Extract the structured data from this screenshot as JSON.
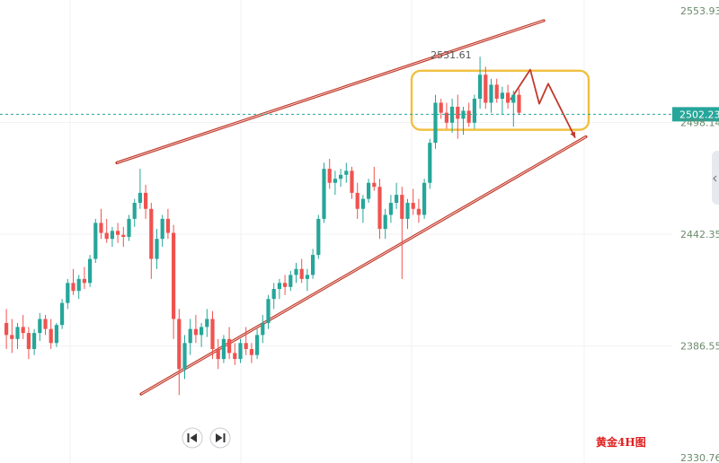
{
  "chart_data": {
    "type": "candlestick",
    "title": "黄金4H图",
    "y_ticks": [
      "2553.93",
      "2498.14",
      "2442.35",
      "2386.55",
      "2330.76"
    ],
    "ylim": [
      2330.76,
      2553.93
    ],
    "current_price": "2502.23",
    "annotations": {
      "high_label": "2531.61"
    },
    "grid": true,
    "candles": [
      [
        2398,
        2405,
        2385,
        2392
      ],
      [
        2392,
        2400,
        2383,
        2390
      ],
      [
        2390,
        2398,
        2385,
        2396
      ],
      [
        2396,
        2402,
        2390,
        2393
      ],
      [
        2393,
        2396,
        2380,
        2385
      ],
      [
        2385,
        2395,
        2382,
        2393
      ],
      [
        2393,
        2403,
        2389,
        2400
      ],
      [
        2400,
        2402,
        2392,
        2395
      ],
      [
        2395,
        2400,
        2385,
        2388
      ],
      [
        2388,
        2398,
        2386,
        2397
      ],
      [
        2397,
        2410,
        2395,
        2408
      ],
      [
        2408,
        2420,
        2405,
        2418
      ],
      [
        2418,
        2425,
        2412,
        2414
      ],
      [
        2414,
        2422,
        2410,
        2420
      ],
      [
        2420,
        2426,
        2415,
        2418
      ],
      [
        2418,
        2432,
        2416,
        2430
      ],
      [
        2430,
        2450,
        2428,
        2448
      ],
      [
        2448,
        2455,
        2440,
        2443
      ],
      [
        2443,
        2450,
        2438,
        2440
      ],
      [
        2440,
        2446,
        2436,
        2444
      ],
      [
        2444,
        2448,
        2438,
        2442
      ],
      [
        2442,
        2446,
        2436,
        2441
      ],
      [
        2441,
        2452,
        2439,
        2450
      ],
      [
        2450,
        2460,
        2446,
        2458
      ],
      [
        2458,
        2475,
        2455,
        2463
      ],
      [
        2463,
        2467,
        2450,
        2455
      ],
      [
        2455,
        2458,
        2420,
        2430
      ],
      [
        2430,
        2445,
        2425,
        2440
      ],
      [
        2440,
        2452,
        2436,
        2450
      ],
      [
        2450,
        2455,
        2440,
        2443
      ],
      [
        2443,
        2447,
        2390,
        2400
      ],
      [
        2400,
        2405,
        2362,
        2375
      ],
      [
        2375,
        2392,
        2370,
        2388
      ],
      [
        2388,
        2400,
        2382,
        2395
      ],
      [
        2395,
        2402,
        2388,
        2392
      ],
      [
        2392,
        2398,
        2386,
        2396
      ],
      [
        2396,
        2405,
        2391,
        2400
      ],
      [
        2400,
        2404,
        2380,
        2385
      ],
      [
        2385,
        2390,
        2375,
        2380
      ],
      [
        2380,
        2392,
        2378,
        2390
      ],
      [
        2390,
        2396,
        2380,
        2383
      ],
      [
        2383,
        2388,
        2377,
        2380
      ],
      [
        2380,
        2390,
        2378,
        2388
      ],
      [
        2388,
        2396,
        2382,
        2385
      ],
      [
        2385,
        2388,
        2378,
        2382
      ],
      [
        2382,
        2395,
        2380,
        2392
      ],
      [
        2392,
        2402,
        2388,
        2398
      ],
      [
        2398,
        2412,
        2395,
        2410
      ],
      [
        2410,
        2418,
        2405,
        2415
      ],
      [
        2415,
        2420,
        2410,
        2418
      ],
      [
        2418,
        2422,
        2412,
        2416
      ],
      [
        2416,
        2424,
        2414,
        2422
      ],
      [
        2422,
        2428,
        2418,
        2425
      ],
      [
        2425,
        2430,
        2418,
        2420
      ],
      [
        2420,
        2425,
        2414,
        2422
      ],
      [
        2422,
        2435,
        2420,
        2432
      ],
      [
        2432,
        2452,
        2430,
        2450
      ],
      [
        2450,
        2478,
        2448,
        2475
      ],
      [
        2475,
        2480,
        2465,
        2468
      ],
      [
        2468,
        2474,
        2462,
        2470
      ],
      [
        2470,
        2475,
        2466,
        2472
      ],
      [
        2472,
        2478,
        2468,
        2474
      ],
      [
        2474,
        2476,
        2460,
        2463
      ],
      [
        2463,
        2468,
        2450,
        2455
      ],
      [
        2455,
        2462,
        2448,
        2460
      ],
      [
        2460,
        2470,
        2458,
        2468
      ],
      [
        2468,
        2476,
        2464,
        2466
      ],
      [
        2466,
        2470,
        2440,
        2445
      ],
      [
        2445,
        2455,
        2440,
        2452
      ],
      [
        2452,
        2462,
        2448,
        2458
      ],
      [
        2458,
        2468,
        2455,
        2462
      ],
      [
        2462,
        2466,
        2420,
        2450
      ],
      [
        2450,
        2460,
        2445,
        2458
      ],
      [
        2458,
        2465,
        2452,
        2455
      ],
      [
        2455,
        2460,
        2448,
        2452
      ],
      [
        2452,
        2470,
        2450,
        2468
      ],
      [
        2468,
        2490,
        2465,
        2488
      ],
      [
        2488,
        2512,
        2485,
        2508
      ],
      [
        2508,
        2510,
        2500,
        2503
      ],
      [
        2503,
        2508,
        2495,
        2498
      ],
      [
        2498,
        2510,
        2493,
        2506
      ],
      [
        2506,
        2512,
        2490,
        2500
      ],
      [
        2500,
        2506,
        2492,
        2504
      ],
      [
        2504,
        2508,
        2496,
        2498
      ],
      [
        2498,
        2512,
        2495,
        2510
      ],
      [
        2510,
        2531,
        2505,
        2522
      ],
      [
        2522,
        2526,
        2505,
        2508
      ],
      [
        2508,
        2520,
        2503,
        2517
      ],
      [
        2517,
        2520,
        2508,
        2510
      ],
      [
        2510,
        2516,
        2502,
        2513
      ],
      [
        2513,
        2517,
        2505,
        2508
      ],
      [
        2508,
        2514,
        2496,
        2512
      ],
      [
        2512,
        2515,
        2502,
        2503
      ]
    ]
  },
  "drawings": {
    "upper_channel": {
      "from": [
        130,
        2478.0
      ],
      "to": [
        605,
        2549.0
      ]
    },
    "lower_channel": {
      "from": [
        157,
        2362.5
      ],
      "to": [
        652,
        2491.0
      ]
    },
    "consolidation_box": {
      "top": 2524.0,
      "bottom": 2494.5
    },
    "projection_path": [
      [
        568,
        2509.5
      ],
      [
        590,
        2524.5
      ],
      [
        600,
        2507.5
      ],
      [
        610,
        2517.5
      ],
      [
        640,
        2490.5
      ]
    ]
  },
  "colors": {
    "up": "#26a69a",
    "down": "#ef5350",
    "channel": "#c0392b",
    "box": "#f0c040",
    "projection": "#c0392b",
    "current_tag": "#26a69a"
  },
  "ui": {
    "nav_prev_icon": "skip-back-icon",
    "nav_next_icon": "skip-forward-icon"
  }
}
